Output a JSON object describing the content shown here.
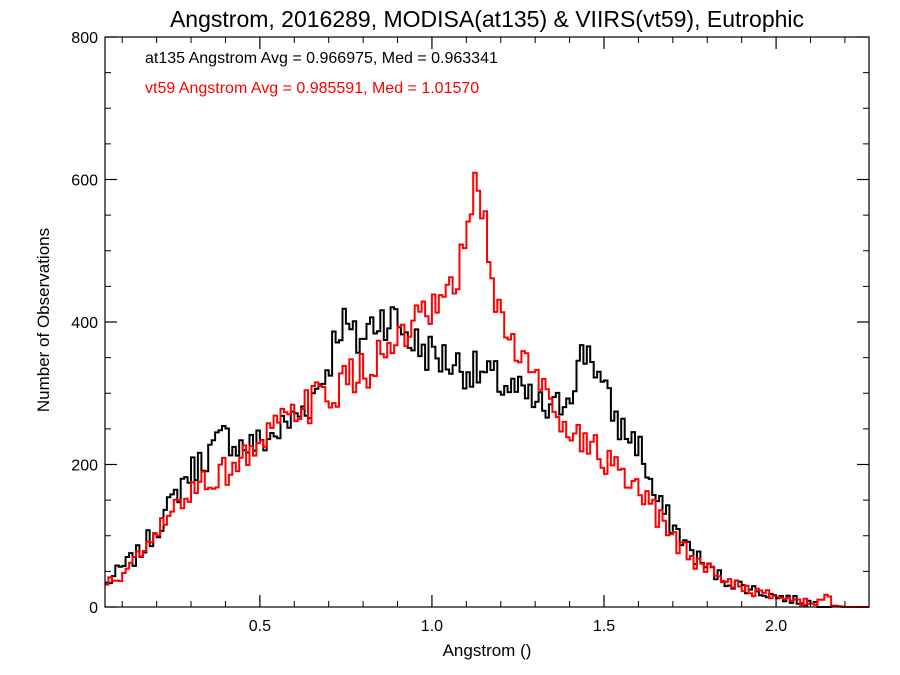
{
  "chart_data": {
    "type": "line",
    "title": "Angstrom, 2016289, MODISA(at135) & VIIRS(vt59), Eutrophic",
    "xlabel": "Angstrom ()",
    "ylabel": "Number of Observations",
    "xlim": [
      0.05,
      2.27
    ],
    "ylim": [
      0,
      800
    ],
    "xticks": [
      0.5,
      1.0,
      1.5,
      2.0
    ],
    "xtick_labels": [
      "0.5",
      "1.0",
      "1.5",
      "2.0"
    ],
    "yticks": [
      0,
      200,
      400,
      600,
      800
    ],
    "ytick_labels": [
      "0",
      "200",
      "400",
      "600",
      "800"
    ],
    "grid": false,
    "annotations": [
      {
        "text": "at135 Angstrom Avg = 0.966975, Med = 0.963341",
        "color": "#000000"
      },
      {
        "text": "vt59 Angstrom Avg = 0.985591, Med = 1.01570",
        "color": "#ff0000"
      }
    ],
    "series": [
      {
        "color": "#000000",
        "points": [
          [
            0.05,
            30
          ],
          [
            0.1,
            55
          ],
          [
            0.15,
            75
          ],
          [
            0.2,
            110
          ],
          [
            0.25,
            150
          ],
          [
            0.28,
            180
          ],
          [
            0.3,
            190
          ],
          [
            0.35,
            215
          ],
          [
            0.4,
            240
          ],
          [
            0.45,
            225
          ],
          [
            0.5,
            230
          ],
          [
            0.55,
            245
          ],
          [
            0.6,
            265
          ],
          [
            0.65,
            290
          ],
          [
            0.7,
            340
          ],
          [
            0.73,
            400
          ],
          [
            0.75,
            395
          ],
          [
            0.78,
            370
          ],
          [
            0.8,
            380
          ],
          [
            0.85,
            410
          ],
          [
            0.9,
            400
          ],
          [
            0.95,
            370
          ],
          [
            1.0,
            355
          ],
          [
            1.05,
            345
          ],
          [
            1.1,
            335
          ],
          [
            1.15,
            325
          ],
          [
            1.2,
            315
          ],
          [
            1.25,
            300
          ],
          [
            1.3,
            285
          ],
          [
            1.35,
            270
          ],
          [
            1.4,
            305
          ],
          [
            1.44,
            355
          ],
          [
            1.46,
            365
          ],
          [
            1.5,
            300
          ],
          [
            1.55,
            250
          ],
          [
            1.6,
            230
          ],
          [
            1.62,
            200
          ],
          [
            1.65,
            150
          ],
          [
            1.7,
            115
          ],
          [
            1.75,
            80
          ],
          [
            1.8,
            55
          ],
          [
            1.85,
            38
          ],
          [
            1.9,
            30
          ],
          [
            1.95,
            22
          ],
          [
            2.0,
            15
          ],
          [
            2.05,
            10
          ],
          [
            2.1,
            6
          ],
          [
            2.14,
            3
          ],
          [
            2.2,
            0
          ],
          [
            2.27,
            0
          ]
        ]
      },
      {
        "color": "#ff0000",
        "points": [
          [
            0.05,
            30
          ],
          [
            0.1,
            45
          ],
          [
            0.15,
            70
          ],
          [
            0.2,
            100
          ],
          [
            0.25,
            135
          ],
          [
            0.3,
            165
          ],
          [
            0.35,
            180
          ],
          [
            0.4,
            190
          ],
          [
            0.45,
            210
          ],
          [
            0.5,
            225
          ],
          [
            0.55,
            250
          ],
          [
            0.6,
            270
          ],
          [
            0.65,
            285
          ],
          [
            0.7,
            300
          ],
          [
            0.75,
            315
          ],
          [
            0.8,
            330
          ],
          [
            0.85,
            350
          ],
          [
            0.9,
            370
          ],
          [
            0.95,
            390
          ],
          [
            1.0,
            410
          ],
          [
            1.05,
            430
          ],
          [
            1.08,
            470
          ],
          [
            1.11,
            540
          ],
          [
            1.13,
            590
          ],
          [
            1.15,
            560
          ],
          [
            1.18,
            440
          ],
          [
            1.22,
            380
          ],
          [
            1.25,
            360
          ],
          [
            1.3,
            320
          ],
          [
            1.35,
            290
          ],
          [
            1.4,
            250
          ],
          [
            1.45,
            230
          ],
          [
            1.5,
            210
          ],
          [
            1.55,
            180
          ],
          [
            1.6,
            160
          ],
          [
            1.65,
            130
          ],
          [
            1.7,
            95
          ],
          [
            1.75,
            70
          ],
          [
            1.8,
            55
          ],
          [
            1.85,
            40
          ],
          [
            1.9,
            28
          ],
          [
            1.95,
            20
          ],
          [
            2.0,
            14
          ],
          [
            2.05,
            10
          ],
          [
            2.1,
            6
          ],
          [
            2.14,
            4
          ],
          [
            2.15,
            35
          ],
          [
            2.16,
            3
          ],
          [
            2.2,
            0
          ],
          [
            2.27,
            0
          ]
        ]
      }
    ]
  }
}
